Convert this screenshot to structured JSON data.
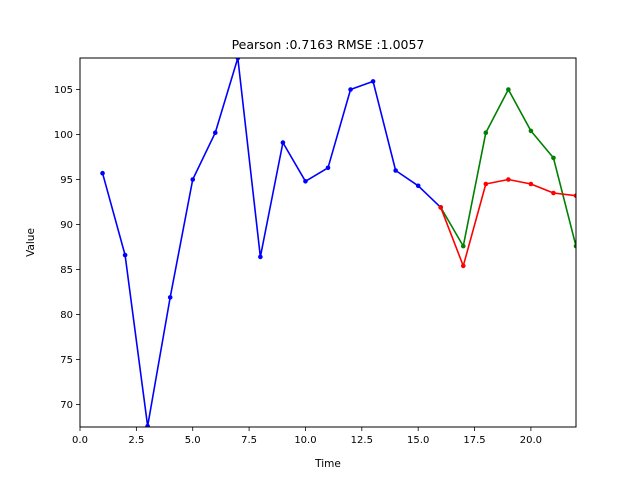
{
  "chart_data": {
    "type": "line",
    "title": "Pearson :0.7163  RMSE :1.0057",
    "xlabel": "Time",
    "ylabel": "Value",
    "xlim": [
      0,
      22
    ],
    "ylim": [
      67.5,
      108.5
    ],
    "xticks": [
      0,
      2.5,
      5,
      7.5,
      10,
      12.5,
      15,
      17.5,
      20
    ],
    "xtick_labels": [
      "0.0",
      "2.5",
      "5.0",
      "7.5",
      "10.0",
      "12.5",
      "15.0",
      "17.5",
      "20.0"
    ],
    "yticks": [
      70,
      75,
      80,
      85,
      90,
      95,
      100,
      105
    ],
    "ytick_labels": [
      "70",
      "75",
      "80",
      "85",
      "90",
      "95",
      "100",
      "105"
    ],
    "grid": false,
    "series": [
      {
        "color": "#0000ff",
        "x": [
          1,
          2,
          3,
          4,
          5,
          6,
          7,
          8,
          9,
          10,
          11,
          12,
          13,
          14,
          15,
          16
        ],
        "y": [
          95.7,
          86.6,
          67.6,
          81.9,
          95.0,
          100.2,
          108.5,
          86.4,
          99.1,
          94.8,
          96.3,
          105.0,
          105.9,
          96.0,
          94.3,
          91.9
        ]
      },
      {
        "color": "#008000",
        "x": [
          16,
          17,
          18,
          19,
          20,
          21,
          22
        ],
        "y": [
          91.9,
          87.6,
          100.2,
          105.0,
          100.4,
          97.4,
          87.6
        ]
      },
      {
        "color": "#ff0000",
        "x": [
          16,
          17,
          18,
          19,
          20,
          21,
          22
        ],
        "y": [
          91.9,
          85.4,
          94.5,
          95.0,
          94.5,
          93.5,
          93.2
        ]
      }
    ]
  }
}
